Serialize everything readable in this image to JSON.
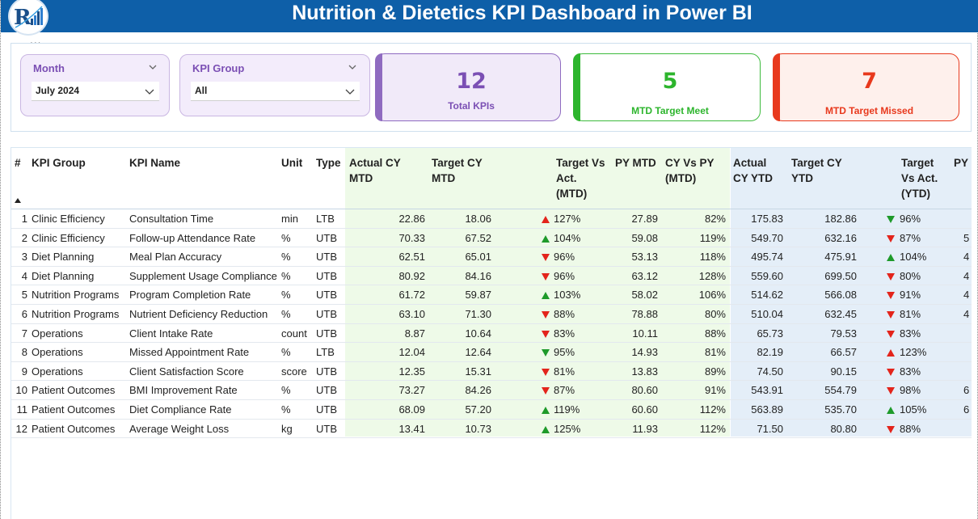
{
  "header": {
    "title": "Nutrition & Dietetics KPI Dashboard in Power BI",
    "bg_color": "#0e5fa8"
  },
  "visual_menu": "...",
  "slicers": {
    "month": {
      "label": "Month",
      "value": "July 2024"
    },
    "kpi_group": {
      "label": "KPI Group",
      "value": "All"
    }
  },
  "cards": {
    "total": {
      "value": "12",
      "label": "Total KPIs",
      "color": "#7b4fb4"
    },
    "met": {
      "value": "5",
      "label": "MTD Target Meet",
      "color": "#2db52d"
    },
    "missed": {
      "value": "7",
      "label": "MTD Target Missed",
      "color": "#e8391d"
    }
  },
  "table": {
    "columns": {
      "num": "#",
      "group": "KPI Group",
      "name": "KPI Name",
      "unit": "Unit",
      "type": "Type",
      "actual_mtd": [
        "Actual CY",
        "MTD"
      ],
      "target_mtd": [
        "Target CY",
        "MTD"
      ],
      "tva_mtd": [
        "Target Vs",
        "Act.",
        "(MTD)"
      ],
      "py_mtd": "PY MTD",
      "cyvspy_mtd": [
        "CY Vs PY",
        "(MTD)"
      ],
      "actual_ytd": [
        "Actual",
        "CY YTD"
      ],
      "target_ytd": [
        "Target CY",
        "YTD"
      ],
      "tva_ytd": [
        "Target",
        "Vs Act.",
        "(YTD)"
      ],
      "py_ytd": "PY"
    },
    "rows": [
      {
        "num": "1",
        "group": "Clinic Efficiency",
        "name": "Consultation Time",
        "unit": "min",
        "type": "LTB",
        "actual_mtd": "22.86",
        "target_mtd": "18.06",
        "tva_mtd_dir": "up-red",
        "tva_mtd": "127%",
        "py_mtd": "27.89",
        "cyvspy_mtd": "82%",
        "actual_ytd": "175.83",
        "target_ytd": "182.86",
        "tva_ytd_dir": "down-green",
        "tva_ytd": "96%",
        "py_ytd": ""
      },
      {
        "num": "2",
        "group": "Clinic Efficiency",
        "name": "Follow-up Attendance Rate",
        "unit": "%",
        "type": "UTB",
        "actual_mtd": "70.33",
        "target_mtd": "67.52",
        "tva_mtd_dir": "up-green",
        "tva_mtd": "104%",
        "py_mtd": "59.08",
        "cyvspy_mtd": "119%",
        "actual_ytd": "549.70",
        "target_ytd": "632.16",
        "tva_ytd_dir": "down-red",
        "tva_ytd": "87%",
        "py_ytd": "5"
      },
      {
        "num": "3",
        "group": "Diet Planning",
        "name": "Meal Plan Accuracy",
        "unit": "%",
        "type": "UTB",
        "actual_mtd": "62.51",
        "target_mtd": "65.01",
        "tva_mtd_dir": "down-red",
        "tva_mtd": "96%",
        "py_mtd": "53.13",
        "cyvspy_mtd": "118%",
        "actual_ytd": "495.74",
        "target_ytd": "475.91",
        "tva_ytd_dir": "up-green",
        "tva_ytd": "104%",
        "py_ytd": "4"
      },
      {
        "num": "4",
        "group": "Diet Planning",
        "name": "Supplement Usage Compliance",
        "unit": "%",
        "type": "UTB",
        "actual_mtd": "80.92",
        "target_mtd": "84.16",
        "tva_mtd_dir": "down-red",
        "tva_mtd": "96%",
        "py_mtd": "63.12",
        "cyvspy_mtd": "128%",
        "actual_ytd": "559.60",
        "target_ytd": "699.50",
        "tva_ytd_dir": "down-red",
        "tva_ytd": "80%",
        "py_ytd": "4"
      },
      {
        "num": "5",
        "group": "Nutrition Programs",
        "name": "Program Completion Rate",
        "unit": "%",
        "type": "UTB",
        "actual_mtd": "61.72",
        "target_mtd": "59.87",
        "tva_mtd_dir": "up-green",
        "tva_mtd": "103%",
        "py_mtd": "58.02",
        "cyvspy_mtd": "106%",
        "actual_ytd": "514.62",
        "target_ytd": "566.08",
        "tva_ytd_dir": "down-red",
        "tva_ytd": "91%",
        "py_ytd": "4"
      },
      {
        "num": "6",
        "group": "Nutrition Programs",
        "name": "Nutrient Deficiency Reduction",
        "unit": "%",
        "type": "UTB",
        "actual_mtd": "63.10",
        "target_mtd": "71.30",
        "tva_mtd_dir": "down-red",
        "tva_mtd": "88%",
        "py_mtd": "78.88",
        "cyvspy_mtd": "80%",
        "actual_ytd": "510.04",
        "target_ytd": "632.45",
        "tva_ytd_dir": "down-red",
        "tva_ytd": "81%",
        "py_ytd": "4"
      },
      {
        "num": "7",
        "group": "Operations",
        "name": "Client Intake Rate",
        "unit": "count",
        "type": "UTB",
        "actual_mtd": "8.87",
        "target_mtd": "10.64",
        "tva_mtd_dir": "down-red",
        "tva_mtd": "83%",
        "py_mtd": "10.11",
        "cyvspy_mtd": "88%",
        "actual_ytd": "65.73",
        "target_ytd": "79.53",
        "tva_ytd_dir": "down-red",
        "tva_ytd": "83%",
        "py_ytd": ""
      },
      {
        "num": "8",
        "group": "Operations",
        "name": "Missed Appointment Rate",
        "unit": "%",
        "type": "LTB",
        "actual_mtd": "12.04",
        "target_mtd": "12.64",
        "tva_mtd_dir": "down-green",
        "tva_mtd": "95%",
        "py_mtd": "14.93",
        "cyvspy_mtd": "81%",
        "actual_ytd": "82.19",
        "target_ytd": "66.57",
        "tva_ytd_dir": "up-red",
        "tva_ytd": "123%",
        "py_ytd": ""
      },
      {
        "num": "9",
        "group": "Operations",
        "name": "Client Satisfaction Score",
        "unit": "score",
        "type": "UTB",
        "actual_mtd": "12.35",
        "target_mtd": "15.31",
        "tva_mtd_dir": "down-red",
        "tva_mtd": "81%",
        "py_mtd": "13.83",
        "cyvspy_mtd": "89%",
        "actual_ytd": "74.50",
        "target_ytd": "90.15",
        "tva_ytd_dir": "down-red",
        "tva_ytd": "83%",
        "py_ytd": ""
      },
      {
        "num": "10",
        "group": "Patient Outcomes",
        "name": "BMI Improvement Rate",
        "unit": "%",
        "type": "UTB",
        "actual_mtd": "73.27",
        "target_mtd": "84.26",
        "tva_mtd_dir": "down-red",
        "tva_mtd": "87%",
        "py_mtd": "80.60",
        "cyvspy_mtd": "91%",
        "actual_ytd": "543.91",
        "target_ytd": "554.79",
        "tva_ytd_dir": "down-red",
        "tva_ytd": "98%",
        "py_ytd": "6"
      },
      {
        "num": "11",
        "group": "Patient Outcomes",
        "name": "Diet Compliance Rate",
        "unit": "%",
        "type": "UTB",
        "actual_mtd": "68.09",
        "target_mtd": "57.20",
        "tva_mtd_dir": "up-green",
        "tva_mtd": "119%",
        "py_mtd": "60.60",
        "cyvspy_mtd": "112%",
        "actual_ytd": "563.89",
        "target_ytd": "535.70",
        "tva_ytd_dir": "up-green",
        "tva_ytd": "105%",
        "py_ytd": "6"
      },
      {
        "num": "12",
        "group": "Patient Outcomes",
        "name": "Average Weight Loss",
        "unit": "kg",
        "type": "UTB",
        "actual_mtd": "13.41",
        "target_mtd": "10.73",
        "tva_mtd_dir": "up-green",
        "tva_mtd": "125%",
        "py_mtd": "11.93",
        "cyvspy_mtd": "112%",
        "actual_ytd": "71.50",
        "target_ytd": "80.80",
        "tva_ytd_dir": "down-red",
        "tva_ytd": "88%",
        "py_ytd": ""
      }
    ]
  },
  "colors": {
    "green": "#1e9a2a",
    "red": "#e3241b",
    "mtd_band": "#eefae8",
    "ytd_band": "#e4eef8"
  }
}
